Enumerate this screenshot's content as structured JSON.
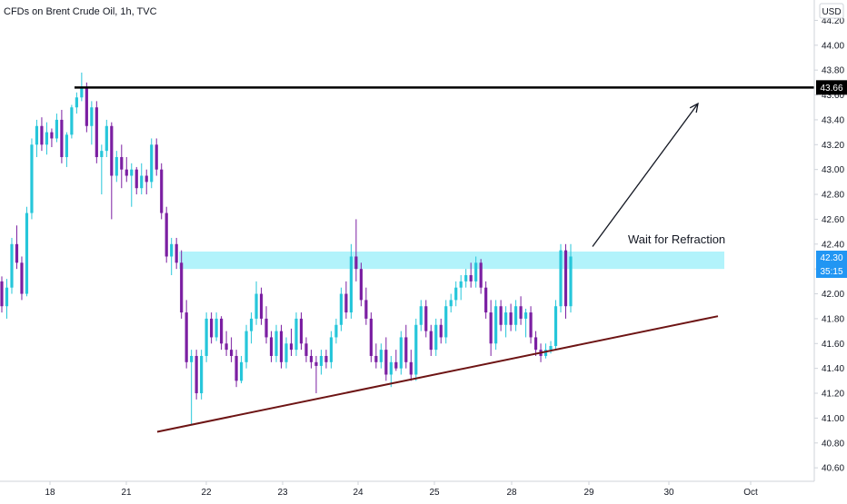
{
  "header": {
    "title": "CFDs on Brent Crude Oil, 1h, TVC"
  },
  "currency_label": "USD",
  "annotation": "Wait for Refraction",
  "price_badge": {
    "value": "43.66",
    "color": "#000000"
  },
  "current_price_badge": {
    "value": "42.30",
    "color": "#2196f3"
  },
  "countdown_badge": {
    "value": "35:15",
    "color": "#2196f3"
  },
  "colors": {
    "up": "#26c6da",
    "down": "#7b1fa2",
    "zone": "#b2f3fb",
    "trendline": "#6d1414",
    "level": "#000000"
  },
  "chart_data": {
    "type": "candlestick",
    "title": "CFDs on Brent Crude Oil, 1h, TVC",
    "ylabel": "USD",
    "ylim": [
      40.55,
      44.32
    ],
    "xlim": [
      0,
      130
    ],
    "y_ticks": [
      "40.60",
      "40.80",
      "41.00",
      "41.20",
      "41.40",
      "41.60",
      "41.80",
      "42.00",
      "42.20",
      "42.40",
      "42.60",
      "42.80",
      "43.00",
      "43.20",
      "43.40",
      "43.60",
      "43.80",
      "44.00",
      "44.20"
    ],
    "x_ticks": [
      {
        "label": "18",
        "x": 8
      },
      {
        "label": "21",
        "x": 23
      },
      {
        "label": "22",
        "x": 38
      },
      {
        "label": "23",
        "x": 53
      },
      {
        "label": "24",
        "x": 68
      },
      {
        "label": "25",
        "x": 83
      },
      {
        "label": "28",
        "x": 98
      },
      {
        "label": "29",
        "x": 113
      },
      {
        "label": "30",
        "x": 128
      },
      {
        "label": "Oct",
        "x": 143
      }
    ],
    "horizontal_level": 43.66,
    "resistance_zone": [
      42.2,
      42.34
    ],
    "trendline": {
      "from": [
        31,
        40.89
      ],
      "to": [
        139,
        41.82
      ]
    },
    "arrow": {
      "from": [
        115,
        42.38
      ],
      "to": [
        134,
        43.53
      ]
    },
    "candles": [
      [
        42.1,
        42.14,
        41.85,
        41.9
      ],
      [
        41.9,
        42.12,
        41.8,
        42.05
      ],
      [
        42.05,
        42.45,
        42.0,
        42.4
      ],
      [
        42.4,
        42.55,
        42.2,
        42.25
      ],
      [
        42.25,
        42.3,
        41.95,
        42.0
      ],
      [
        42.0,
        42.7,
        41.98,
        42.65
      ],
      [
        42.65,
        43.25,
        42.6,
        43.2
      ],
      [
        43.2,
        43.4,
        43.1,
        43.35
      ],
      [
        43.35,
        43.42,
        43.15,
        43.2
      ],
      [
        43.2,
        43.38,
        43.12,
        43.3
      ],
      [
        43.3,
        43.33,
        43.18,
        43.25
      ],
      [
        43.25,
        43.45,
        43.22,
        43.4
      ],
      [
        43.4,
        43.48,
        43.05,
        43.1
      ],
      [
        43.1,
        43.3,
        43.02,
        43.28
      ],
      [
        43.28,
        43.52,
        43.25,
        43.5
      ],
      [
        43.5,
        43.62,
        43.45,
        43.58
      ],
      [
        43.58,
        43.78,
        43.55,
        43.66
      ],
      [
        43.66,
        43.7,
        43.3,
        43.35
      ],
      [
        43.35,
        43.55,
        43.2,
        43.5
      ],
      [
        43.5,
        43.55,
        43.05,
        43.1
      ],
      [
        43.1,
        43.2,
        42.8,
        43.15
      ],
      [
        43.15,
        43.4,
        43.1,
        43.35
      ],
      [
        43.35,
        43.38,
        42.6,
        42.95
      ],
      [
        42.95,
        43.15,
        42.9,
        43.1
      ],
      [
        43.1,
        43.2,
        42.85,
        43.0
      ],
      [
        43.0,
        43.1,
        42.9,
        42.95
      ],
      [
        42.95,
        43.05,
        42.7,
        43.0
      ],
      [
        43.0,
        43.02,
        42.8,
        42.85
      ],
      [
        42.85,
        43.05,
        42.8,
        42.95
      ],
      [
        42.95,
        43.0,
        42.8,
        42.9
      ],
      [
        42.9,
        43.25,
        42.85,
        43.2
      ],
      [
        43.2,
        43.25,
        42.95,
        43.0
      ],
      [
        43.0,
        43.05,
        42.6,
        42.65
      ],
      [
        42.65,
        42.7,
        42.25,
        42.3
      ],
      [
        42.3,
        42.45,
        42.15,
        42.4
      ],
      [
        42.4,
        42.45,
        42.2,
        42.25
      ],
      [
        42.25,
        42.35,
        41.8,
        41.85
      ],
      [
        41.85,
        41.95,
        41.4,
        41.45
      ],
      [
        41.45,
        41.55,
        40.95,
        41.5
      ],
      [
        41.5,
        41.55,
        41.15,
        41.2
      ],
      [
        41.2,
        41.55,
        41.15,
        41.5
      ],
      [
        41.5,
        41.85,
        41.45,
        41.8
      ],
      [
        41.8,
        41.85,
        41.6,
        41.65
      ],
      [
        41.65,
        41.85,
        41.62,
        41.8
      ],
      [
        41.8,
        41.82,
        41.55,
        41.6
      ],
      [
        41.6,
        41.7,
        41.5,
        41.55
      ],
      [
        41.55,
        41.65,
        41.45,
        41.5
      ],
      [
        41.5,
        41.55,
        41.25,
        41.3
      ],
      [
        41.3,
        41.5,
        41.28,
        41.45
      ],
      [
        41.45,
        41.75,
        41.4,
        41.7
      ],
      [
        41.7,
        41.85,
        41.6,
        41.8
      ],
      [
        41.8,
        42.1,
        41.75,
        42.0
      ],
      [
        42.0,
        42.05,
        41.75,
        41.8
      ],
      [
        41.8,
        41.9,
        41.6,
        41.65
      ],
      [
        41.65,
        41.7,
        41.45,
        41.5
      ],
      [
        41.5,
        41.75,
        41.45,
        41.7
      ],
      [
        41.7,
        41.75,
        41.4,
        41.45
      ],
      [
        41.45,
        41.65,
        41.4,
        41.6
      ],
      [
        41.6,
        41.72,
        41.5,
        41.55
      ],
      [
        41.55,
        41.85,
        41.5,
        41.8
      ],
      [
        41.8,
        41.85,
        41.55,
        41.6
      ],
      [
        41.6,
        41.65,
        41.45,
        41.5
      ],
      [
        41.5,
        41.55,
        41.4,
        41.45
      ],
      [
        41.45,
        41.5,
        41.2,
        41.42
      ],
      [
        41.42,
        41.55,
        41.35,
        41.5
      ],
      [
        41.5,
        41.55,
        41.4,
        41.45
      ],
      [
        41.45,
        41.7,
        41.4,
        41.65
      ],
      [
        41.65,
        41.8,
        41.6,
        41.75
      ],
      [
        41.75,
        42.05,
        41.7,
        42.0
      ],
      [
        42.0,
        42.1,
        41.8,
        41.85
      ],
      [
        41.85,
        42.4,
        41.8,
        42.3
      ],
      [
        42.3,
        42.6,
        42.1,
        42.2
      ],
      [
        42.2,
        42.25,
        41.9,
        41.95
      ],
      [
        41.95,
        42.05,
        41.75,
        41.8
      ],
      [
        41.8,
        41.85,
        41.45,
        41.5
      ],
      [
        41.5,
        41.6,
        41.4,
        41.45
      ],
      [
        41.45,
        41.6,
        41.4,
        41.55
      ],
      [
        41.55,
        41.65,
        41.3,
        41.35
      ],
      [
        41.35,
        41.5,
        41.25,
        41.45
      ],
      [
        41.45,
        41.55,
        41.38,
        41.4
      ],
      [
        41.4,
        41.7,
        41.35,
        41.65
      ],
      [
        41.65,
        41.75,
        41.4,
        41.45
      ],
      [
        41.45,
        41.55,
        41.3,
        41.35
      ],
      [
        41.35,
        41.8,
        41.3,
        41.75
      ],
      [
        41.75,
        41.95,
        41.7,
        41.9
      ],
      [
        41.9,
        41.95,
        41.65,
        41.7
      ],
      [
        41.7,
        41.75,
        41.5,
        41.55
      ],
      [
        41.55,
        41.8,
        41.5,
        41.75
      ],
      [
        41.75,
        41.8,
        41.6,
        41.65
      ],
      [
        41.65,
        41.95,
        41.6,
        41.9
      ],
      [
        41.9,
        42.0,
        41.85,
        41.95
      ],
      [
        41.95,
        42.1,
        41.9,
        42.05
      ],
      [
        42.05,
        42.15,
        41.95,
        42.1
      ],
      [
        42.1,
        42.2,
        42.05,
        42.15
      ],
      [
        42.15,
        42.25,
        42.05,
        42.1
      ],
      [
        42.1,
        42.3,
        42.05,
        42.25
      ],
      [
        42.25,
        42.28,
        42.0,
        42.05
      ],
      [
        42.05,
        42.1,
        41.8,
        41.85
      ],
      [
        41.85,
        41.95,
        41.5,
        41.6
      ],
      [
        41.6,
        41.95,
        41.55,
        41.9
      ],
      [
        41.9,
        41.95,
        41.7,
        41.75
      ],
      [
        41.75,
        41.9,
        41.65,
        41.85
      ],
      [
        41.85,
        41.92,
        41.7,
        41.75
      ],
      [
        41.75,
        41.95,
        41.7,
        41.9
      ],
      [
        41.9,
        41.98,
        41.75,
        41.8
      ],
      [
        41.8,
        41.88,
        41.65,
        41.85
      ],
      [
        41.85,
        41.9,
        41.6,
        41.65
      ],
      [
        41.65,
        41.7,
        41.5,
        41.55
      ],
      [
        41.55,
        41.6,
        41.45,
        41.5
      ],
      [
        41.5,
        41.6,
        41.48,
        41.55
      ],
      [
        41.55,
        41.62,
        41.52,
        41.58
      ],
      [
        41.58,
        41.95,
        41.55,
        41.9
      ],
      [
        41.9,
        42.4,
        41.85,
        42.35
      ],
      [
        42.35,
        42.4,
        41.8,
        41.9
      ],
      [
        41.9,
        42.4,
        41.85,
        42.3
      ]
    ]
  }
}
